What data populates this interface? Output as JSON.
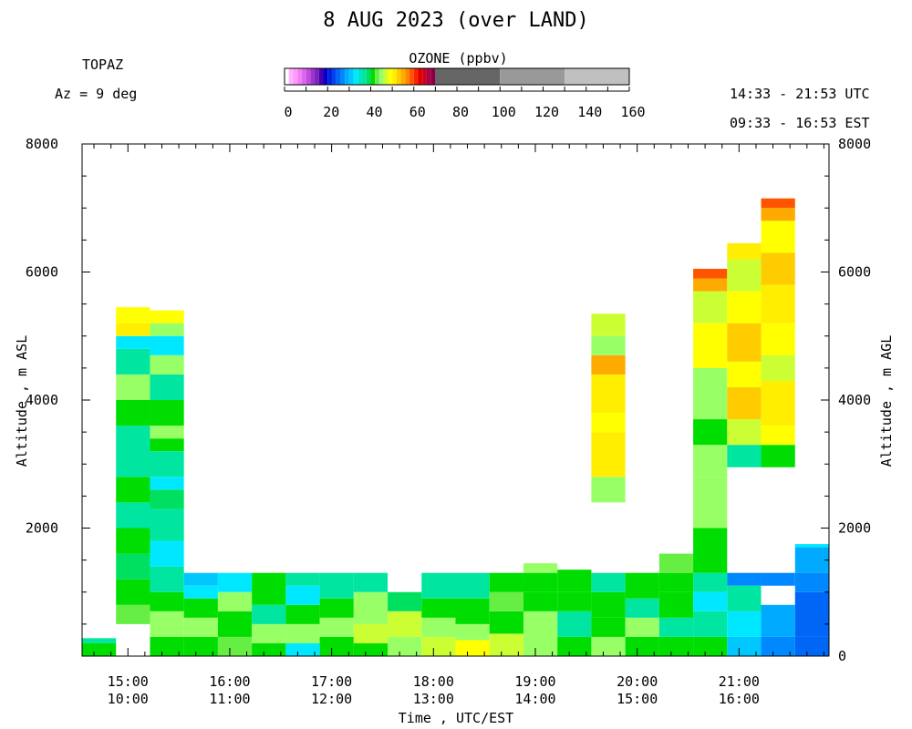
{
  "header": {
    "title": "8 AUG 2023 (over LAND)",
    "station": "TOPAZ",
    "azimuth": "Az =   9 deg",
    "utc_range": "14:33 - 21:53 UTC",
    "est_range": "09:33 - 16:53 EST"
  },
  "colorbar": {
    "title": "OZONE (ppbv)",
    "ticks": [
      "0",
      "20",
      "40",
      "60",
      "80",
      "100",
      "120",
      "140",
      "160"
    ],
    "bins": [
      {
        "lo": 0,
        "hi": 2,
        "color": "#ffffff"
      },
      {
        "lo": 2,
        "hi": 4,
        "color": "#ffb3ff"
      },
      {
        "lo": 4,
        "hi": 6,
        "color": "#ff99ff"
      },
      {
        "lo": 6,
        "hi": 8,
        "color": "#f080f0"
      },
      {
        "lo": 8,
        "hi": 10,
        "color": "#dd66ee"
      },
      {
        "lo": 10,
        "hi": 12,
        "color": "#c04ce0"
      },
      {
        "lo": 12,
        "hi": 14,
        "color": "#a033cc"
      },
      {
        "lo": 14,
        "hi": 16,
        "color": "#7a22bb"
      },
      {
        "lo": 16,
        "hi": 18,
        "color": "#4a00aa"
      },
      {
        "lo": 18,
        "hi": 20,
        "color": "#0000cc"
      },
      {
        "lo": 20,
        "hi": 22,
        "color": "#0022dd"
      },
      {
        "lo": 22,
        "hi": 24,
        "color": "#0044ee"
      },
      {
        "lo": 24,
        "hi": 26,
        "color": "#0066f5"
      },
      {
        "lo": 26,
        "hi": 28,
        "color": "#0088ff"
      },
      {
        "lo": 28,
        "hi": 30,
        "color": "#00aaff"
      },
      {
        "lo": 30,
        "hi": 32,
        "color": "#00c8ff"
      },
      {
        "lo": 32,
        "hi": 34,
        "color": "#00e8ff"
      },
      {
        "lo": 34,
        "hi": 36,
        "color": "#00e5c8"
      },
      {
        "lo": 36,
        "hi": 38,
        "color": "#00e5a0"
      },
      {
        "lo": 38,
        "hi": 40,
        "color": "#00e060"
      },
      {
        "lo": 40,
        "hi": 42,
        "color": "#00dd00"
      },
      {
        "lo": 42,
        "hi": 44,
        "color": "#66ee44"
      },
      {
        "lo": 44,
        "hi": 46,
        "color": "#99ff66"
      },
      {
        "lo": 46,
        "hi": 48,
        "color": "#ccff33"
      },
      {
        "lo": 48,
        "hi": 50,
        "color": "#ffff00"
      },
      {
        "lo": 50,
        "hi": 52,
        "color": "#ffee00"
      },
      {
        "lo": 52,
        "hi": 54,
        "color": "#ffcc00"
      },
      {
        "lo": 54,
        "hi": 56,
        "color": "#ffaa00"
      },
      {
        "lo": 56,
        "hi": 58,
        "color": "#ff8800"
      },
      {
        "lo": 58,
        "hi": 60,
        "color": "#ff5500"
      },
      {
        "lo": 60,
        "hi": 62,
        "color": "#ff2200"
      },
      {
        "lo": 62,
        "hi": 64,
        "color": "#e00000"
      },
      {
        "lo": 64,
        "hi": 66,
        "color": "#cc0022"
      },
      {
        "lo": 66,
        "hi": 68,
        "color": "#aa0044"
      },
      {
        "lo": 68,
        "hi": 70,
        "color": "#880044"
      },
      {
        "lo": 70,
        "hi": 100,
        "color": "#666666"
      },
      {
        "lo": 100,
        "hi": 130,
        "color": "#999999"
      },
      {
        "lo": 130,
        "hi": 160,
        "color": "#c0c0c0"
      }
    ]
  },
  "chart_data": {
    "type": "heatmap",
    "title": "8 AUG 2023 (over LAND)",
    "xlabel": "Time , UTC/EST",
    "ylabel_left": "Altitude , m ASL",
    "ylabel_right": "Altitude , m AGL",
    "xlim_utc": [
      "14:33",
      "21:53"
    ],
    "ylim": [
      0,
      8000
    ],
    "y_ticks_left": [
      "8000",
      "6000",
      "4000",
      "2000"
    ],
    "y_ticks_right": [
      "8000",
      "6000",
      "4000",
      "2000",
      "0"
    ],
    "x_ticks": [
      {
        "utc": "15:00",
        "est": "10:00"
      },
      {
        "utc": "16:00",
        "est": "11:00"
      },
      {
        "utc": "17:00",
        "est": "12:00"
      },
      {
        "utc": "18:00",
        "est": "13:00"
      },
      {
        "utc": "19:00",
        "est": "14:00"
      },
      {
        "utc": "20:00",
        "est": "15:00"
      },
      {
        "utc": "21:00",
        "est": "16:00"
      }
    ],
    "profiles": [
      {
        "start": "14:33",
        "end": "14:53",
        "layers": [
          [
            0,
            200,
            40
          ],
          [
            200,
            280,
            36
          ]
        ]
      },
      {
        "start": "14:53",
        "end": "15:13",
        "layers": [
          [
            500,
            800,
            42
          ],
          [
            800,
            1200,
            40
          ],
          [
            1200,
            1600,
            38
          ],
          [
            1600,
            2000,
            40
          ],
          [
            2000,
            2400,
            36
          ],
          [
            2400,
            2800,
            40
          ],
          [
            2800,
            3600,
            36
          ],
          [
            3600,
            4000,
            40
          ],
          [
            4000,
            4400,
            44
          ],
          [
            4400,
            4800,
            36
          ],
          [
            4800,
            5000,
            32
          ],
          [
            5000,
            5200,
            50
          ],
          [
            5200,
            5450,
            48
          ]
        ]
      },
      {
        "start": "15:13",
        "end": "15:33",
        "layers": [
          [
            0,
            300,
            40
          ],
          [
            300,
            700,
            44
          ],
          [
            700,
            1000,
            40
          ],
          [
            1000,
            1400,
            36
          ],
          [
            1400,
            1800,
            32
          ],
          [
            1800,
            2300,
            36
          ],
          [
            2300,
            2600,
            38
          ],
          [
            2600,
            2800,
            32
          ],
          [
            2800,
            3200,
            36
          ],
          [
            3200,
            3400,
            40
          ],
          [
            3400,
            3600,
            44
          ],
          [
            3600,
            4000,
            40
          ],
          [
            4000,
            4400,
            36
          ],
          [
            4400,
            4700,
            44
          ],
          [
            4700,
            5000,
            32
          ],
          [
            5000,
            5200,
            44
          ],
          [
            5200,
            5400,
            48
          ]
        ]
      },
      {
        "start": "15:33",
        "end": "15:53",
        "layers": [
          [
            0,
            300,
            40
          ],
          [
            300,
            600,
            44
          ],
          [
            600,
            900,
            40
          ],
          [
            900,
            1100,
            32
          ],
          [
            1100,
            1300,
            30
          ]
        ]
      },
      {
        "start": "15:53",
        "end": "16:13",
        "layers": [
          [
            0,
            300,
            42
          ],
          [
            300,
            700,
            40
          ],
          [
            700,
            1000,
            44
          ],
          [
            1000,
            1300,
            32
          ]
        ]
      },
      {
        "start": "16:13",
        "end": "16:33",
        "layers": [
          [
            0,
            200,
            40
          ],
          [
            200,
            500,
            44
          ],
          [
            500,
            800,
            36
          ],
          [
            800,
            1300,
            40
          ]
        ]
      },
      {
        "start": "16:33",
        "end": "16:53",
        "layers": [
          [
            0,
            200,
            32
          ],
          [
            200,
            500,
            44
          ],
          [
            500,
            800,
            40
          ],
          [
            800,
            1100,
            32
          ],
          [
            1100,
            1300,
            36
          ]
        ]
      },
      {
        "start": "16:53",
        "end": "17:13",
        "layers": [
          [
            0,
            300,
            40
          ],
          [
            300,
            600,
            44
          ],
          [
            600,
            900,
            40
          ],
          [
            900,
            1300,
            36
          ]
        ]
      },
      {
        "start": "17:13",
        "end": "17:33",
        "layers": [
          [
            0,
            200,
            40
          ],
          [
            200,
            500,
            46
          ],
          [
            500,
            1000,
            44
          ],
          [
            1000,
            1300,
            36
          ]
        ]
      },
      {
        "start": "17:33",
        "end": "17:53",
        "layers": [
          [
            0,
            300,
            44
          ],
          [
            300,
            700,
            46
          ],
          [
            700,
            1000,
            38
          ]
        ]
      },
      {
        "start": "17:53",
        "end": "18:13",
        "layers": [
          [
            0,
            300,
            46
          ],
          [
            300,
            600,
            44
          ],
          [
            600,
            900,
            40
          ],
          [
            900,
            1300,
            36
          ]
        ]
      },
      {
        "start": "18:13",
        "end": "18:33",
        "layers": [
          [
            0,
            250,
            48
          ],
          [
            250,
            500,
            44
          ],
          [
            500,
            900,
            40
          ],
          [
            900,
            1300,
            36
          ]
        ]
      },
      {
        "start": "18:33",
        "end": "18:53",
        "layers": [
          [
            0,
            350,
            46
          ],
          [
            350,
            700,
            40
          ],
          [
            700,
            1000,
            42
          ],
          [
            1000,
            1300,
            40
          ]
        ]
      },
      {
        "start": "18:53",
        "end": "19:13",
        "layers": [
          [
            0,
            700,
            44
          ],
          [
            700,
            1000,
            40
          ],
          [
            1000,
            1300,
            40
          ],
          [
            1300,
            1450,
            44
          ]
        ]
      },
      {
        "start": "19:13",
        "end": "19:33",
        "layers": [
          [
            0,
            300,
            40
          ],
          [
            300,
            700,
            36
          ],
          [
            700,
            1000,
            40
          ],
          [
            1000,
            1350,
            40
          ]
        ]
      },
      {
        "start": "19:33",
        "end": "19:53",
        "layers": [
          [
            0,
            300,
            44
          ],
          [
            300,
            600,
            40
          ],
          [
            600,
            1000,
            40
          ],
          [
            1000,
            1300,
            36
          ],
          [
            2400,
            2800,
            44
          ],
          [
            2800,
            3500,
            50
          ],
          [
            3500,
            3800,
            48
          ],
          [
            3800,
            4400,
            50
          ],
          [
            4400,
            4700,
            54
          ],
          [
            4700,
            5000,
            44
          ],
          [
            5000,
            5350,
            46
          ]
        ]
      },
      {
        "start": "19:53",
        "end": "20:13",
        "layers": [
          [
            0,
            300,
            40
          ],
          [
            300,
            600,
            44
          ],
          [
            600,
            900,
            36
          ],
          [
            900,
            1300,
            40
          ]
        ]
      },
      {
        "start": "20:13",
        "end": "20:33",
        "layers": [
          [
            0,
            300,
            40
          ],
          [
            300,
            600,
            36
          ],
          [
            600,
            1000,
            40
          ],
          [
            1000,
            1300,
            40
          ],
          [
            1300,
            1600,
            42
          ]
        ]
      },
      {
        "start": "20:33",
        "end": "20:53",
        "layers": [
          [
            0,
            300,
            40
          ],
          [
            300,
            700,
            36
          ],
          [
            700,
            1000,
            32
          ],
          [
            1000,
            1300,
            36
          ],
          [
            1300,
            2000,
            40
          ],
          [
            2000,
            2800,
            44
          ],
          [
            2800,
            3300,
            44
          ],
          [
            3300,
            3700,
            40
          ],
          [
            3700,
            4500,
            44
          ],
          [
            4500,
            5200,
            48
          ],
          [
            5200,
            5700,
            46
          ],
          [
            5700,
            5900,
            54
          ],
          [
            5900,
            6050,
            58
          ]
        ]
      },
      {
        "start": "20:53",
        "end": "21:13",
        "layers": [
          [
            0,
            300,
            30
          ],
          [
            300,
            700,
            32
          ],
          [
            700,
            1100,
            36
          ],
          [
            1100,
            1300,
            26
          ],
          [
            2950,
            3300,
            36
          ],
          [
            3300,
            3700,
            46
          ],
          [
            3700,
            4200,
            52
          ],
          [
            4200,
            4600,
            48
          ],
          [
            4600,
            5200,
            52
          ],
          [
            5200,
            5700,
            48
          ],
          [
            5700,
            6200,
            46
          ],
          [
            6200,
            6450,
            50
          ]
        ]
      },
      {
        "start": "21:13",
        "end": "21:33",
        "layers": [
          [
            0,
            300,
            26
          ],
          [
            300,
            800,
            28
          ],
          [
            1100,
            1300,
            26
          ],
          [
            2950,
            3300,
            40
          ],
          [
            3300,
            3600,
            48
          ],
          [
            3600,
            4300,
            50
          ],
          [
            4300,
            4700,
            46
          ],
          [
            4700,
            5200,
            48
          ],
          [
            5200,
            5800,
            50
          ],
          [
            5800,
            6300,
            52
          ],
          [
            6300,
            6800,
            48
          ],
          [
            6800,
            7000,
            54
          ],
          [
            7000,
            7150,
            58
          ]
        ]
      },
      {
        "start": "21:33",
        "end": "21:53",
        "layers": [
          [
            0,
            300,
            24
          ],
          [
            300,
            1000,
            24
          ],
          [
            1000,
            1300,
            26
          ],
          [
            1300,
            1700,
            28
          ],
          [
            1700,
            1750,
            32
          ]
        ]
      }
    ]
  }
}
